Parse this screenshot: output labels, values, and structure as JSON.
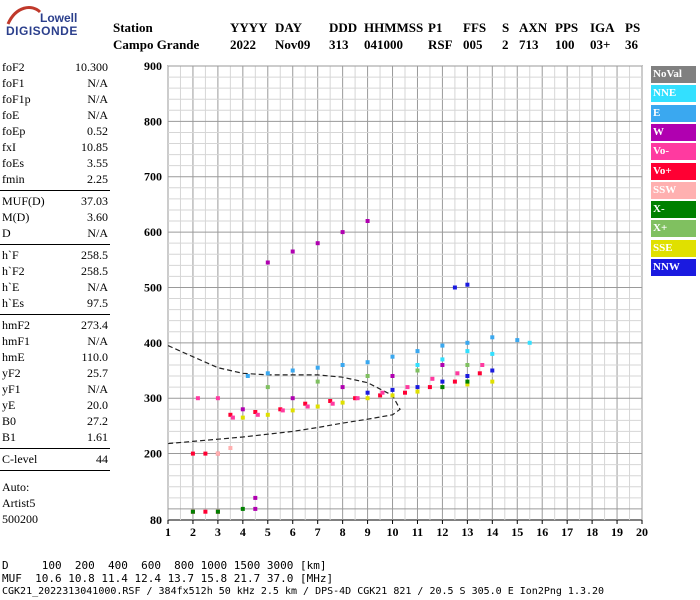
{
  "logo": {
    "line1": "Lowell",
    "line2": "DIGISONDE"
  },
  "header": {
    "labels": [
      "Station",
      "YYYY",
      "DAY",
      "DDD",
      "HHMMSS",
      "P1",
      "FFS",
      "S",
      "AXN",
      "PPS",
      "IGA",
      "PS"
    ],
    "values": [
      "Campo Grande",
      "2022",
      "Nov09",
      "313",
      "041000",
      "RSF",
      "005",
      "2",
      "713",
      "100",
      "03+",
      "36"
    ]
  },
  "params_group1": [
    {
      "name": "foF2",
      "value": "10.300"
    },
    {
      "name": "foF1",
      "value": "N/A"
    },
    {
      "name": "foF1p",
      "value": "N/A"
    },
    {
      "name": "foE",
      "value": "N/A"
    },
    {
      "name": "foEp",
      "value": "0.52"
    },
    {
      "name": "fxI",
      "value": "10.85"
    },
    {
      "name": "foEs",
      "value": "3.55"
    },
    {
      "name": "fmin",
      "value": "2.25"
    }
  ],
  "params_group2": [
    {
      "name": "MUF(D)",
      "value": "37.03"
    },
    {
      "name": "M(D)",
      "value": "3.60"
    },
    {
      "name": "D",
      "value": "N/A"
    }
  ],
  "params_group3": [
    {
      "name": "h`F",
      "value": "258.5"
    },
    {
      "name": "h`F2",
      "value": "258.5"
    },
    {
      "name": "h`E",
      "value": "N/A"
    },
    {
      "name": "h`Es",
      "value": "97.5"
    }
  ],
  "params_group4": [
    {
      "name": "hmF2",
      "value": "273.4"
    },
    {
      "name": "hmF1",
      "value": "N/A"
    },
    {
      "name": "hmE",
      "value": "110.0"
    },
    {
      "name": "yF2",
      "value": "25.7"
    },
    {
      "name": "yF1",
      "value": "N/A"
    },
    {
      "name": "yE",
      "value": "20.0"
    },
    {
      "name": "B0",
      "value": "27.2"
    },
    {
      "name": "B1",
      "value": "1.61"
    }
  ],
  "params_group5": [
    {
      "name": "C-level",
      "value": "44"
    }
  ],
  "auto": {
    "line1": "Auto:",
    "line2": "Artist5",
    "line3": "500200"
  },
  "legend": [
    {
      "label": "NoVal",
      "color": "#808080"
    },
    {
      "label": "NNE",
      "color": "#33e0ff"
    },
    {
      "label": "E",
      "color": "#3aa8f0"
    },
    {
      "label": "W",
      "color": "#b000b0"
    },
    {
      "label": "Vo-",
      "color": "#ff3aa0"
    },
    {
      "label": "Vo+",
      "color": "#ff0033"
    },
    {
      "label": "SSW",
      "color": "#ffb0b0"
    },
    {
      "label": "X-",
      "color": "#008000"
    },
    {
      "label": "X+",
      "color": "#80c060"
    },
    {
      "label": "SSE",
      "color": "#e0e000"
    },
    {
      "label": "NNW",
      "color": "#1a1ae0"
    }
  ],
  "footer": {
    "line1": "D     100  200  400  600  800 1000 1500 3000 [km]",
    "line2": "MUF  10.6 10.8 11.4 12.4 13.7 15.8 21.7 37.0 [MHz]",
    "line3": "CGK21_2022313041000.RSF / 384fx512h 50 kHz 2.5 km / DPS-4D CGK21 821 / 20.5 S 305.0 E Ion2Png 1.3.20"
  },
  "chart_data": {
    "type": "scatter",
    "title": "",
    "xlabel": "",
    "ylabel": "",
    "xlim": [
      1,
      20
    ],
    "ylim": [
      80,
      900
    ],
    "x_ticks": [
      "1",
      "2",
      "3",
      "4",
      "5",
      "6",
      "7",
      "8",
      "9",
      "10",
      "11",
      "12",
      "13",
      "14",
      "15",
      "16",
      "17",
      "18",
      "19",
      "20"
    ],
    "y_ticks": [
      "80",
      "200",
      "300",
      "400",
      "500",
      "600",
      "700",
      "800",
      "900"
    ],
    "grid": true,
    "legend_placement": "right",
    "series": [
      {
        "name": "Vo+",
        "color": "#ff0033",
        "points": [
          [
            3.5,
            270
          ],
          [
            4.5,
            275
          ],
          [
            5.5,
            280
          ],
          [
            6.5,
            290
          ],
          [
            7.5,
            295
          ],
          [
            8.5,
            300
          ],
          [
            9.5,
            305
          ],
          [
            10.5,
            310
          ],
          [
            11.5,
            320
          ],
          [
            12.5,
            330
          ],
          [
            13.5,
            345
          ],
          [
            2,
            200
          ],
          [
            2.5,
            200
          ],
          [
            3,
            200
          ],
          [
            2,
            95
          ],
          [
            2.5,
            95
          ],
          [
            3,
            95
          ]
        ]
      },
      {
        "name": "Vo-",
        "color": "#ff3aa0",
        "points": [
          [
            3.6,
            265
          ],
          [
            4.6,
            270
          ],
          [
            5.6,
            278
          ],
          [
            6.6,
            285
          ],
          [
            7.6,
            290
          ],
          [
            8.6,
            300
          ],
          [
            9.6,
            310
          ],
          [
            10.6,
            320
          ],
          [
            11.6,
            335
          ],
          [
            12.6,
            345
          ],
          [
            13.6,
            360
          ],
          [
            2.2,
            300
          ],
          [
            3.0,
            300
          ]
        ]
      },
      {
        "name": "W",
        "color": "#b000b0",
        "points": [
          [
            5,
            545
          ],
          [
            6,
            565
          ],
          [
            7,
            580
          ],
          [
            8,
            600
          ],
          [
            9,
            620
          ],
          [
            4,
            280
          ],
          [
            6,
            300
          ],
          [
            8,
            320
          ],
          [
            10,
            340
          ],
          [
            12,
            360
          ],
          [
            4.5,
            100
          ],
          [
            4.5,
            120
          ]
        ]
      },
      {
        "name": "E",
        "color": "#3aa8f0",
        "points": [
          [
            4.2,
            340
          ],
          [
            5,
            345
          ],
          [
            6,
            350
          ],
          [
            7,
            355
          ],
          [
            8,
            360
          ],
          [
            9,
            365
          ],
          [
            10,
            375
          ],
          [
            11,
            385
          ],
          [
            12,
            395
          ],
          [
            13,
            400
          ],
          [
            14,
            410
          ],
          [
            15,
            405
          ]
        ]
      },
      {
        "name": "NNE",
        "color": "#33e0ff",
        "points": [
          [
            11,
            360
          ],
          [
            12,
            370
          ],
          [
            13,
            385
          ],
          [
            14,
            380
          ],
          [
            15.5,
            400
          ]
        ]
      },
      {
        "name": "SSE",
        "color": "#e0e000",
        "points": [
          [
            4,
            265
          ],
          [
            5,
            270
          ],
          [
            6,
            278
          ],
          [
            7,
            285
          ],
          [
            8,
            292
          ],
          [
            9,
            300
          ],
          [
            10,
            305
          ],
          [
            11,
            312
          ],
          [
            12,
            320
          ],
          [
            13,
            325
          ],
          [
            14,
            330
          ]
        ]
      },
      {
        "name": "X-",
        "color": "#008000",
        "points": [
          [
            2,
            95
          ],
          [
            3,
            95
          ],
          [
            4,
            100
          ],
          [
            12,
            320
          ],
          [
            13,
            330
          ]
        ]
      },
      {
        "name": "X+",
        "color": "#80c060",
        "points": [
          [
            5,
            320
          ],
          [
            7,
            330
          ],
          [
            9,
            340
          ],
          [
            11,
            350
          ],
          [
            13,
            360
          ]
        ]
      },
      {
        "name": "NNW",
        "color": "#1a1ae0",
        "points": [
          [
            9,
            310
          ],
          [
            10,
            315
          ],
          [
            11,
            320
          ],
          [
            12,
            330
          ],
          [
            13,
            340
          ],
          [
            14,
            350
          ],
          [
            12.5,
            500
          ],
          [
            13,
            505
          ]
        ]
      },
      {
        "name": "SSW",
        "color": "#ffb0b0",
        "points": [
          [
            3,
            200
          ],
          [
            3.5,
            210
          ]
        ]
      }
    ],
    "profile_curve": [
      [
        1,
        395
      ],
      [
        2,
        375
      ],
      [
        3,
        355
      ],
      [
        4,
        345
      ],
      [
        5,
        342
      ],
      [
        6,
        342
      ],
      [
        7,
        342
      ],
      [
        8,
        338
      ],
      [
        9,
        328
      ],
      [
        10,
        305
      ],
      [
        10.3,
        280
      ],
      [
        10,
        270
      ],
      [
        9,
        262
      ],
      [
        8,
        255
      ],
      [
        7,
        247
      ],
      [
        6,
        240
      ],
      [
        5,
        235
      ],
      [
        4,
        230
      ],
      [
        3,
        226
      ],
      [
        2,
        222
      ],
      [
        1,
        218
      ]
    ]
  }
}
